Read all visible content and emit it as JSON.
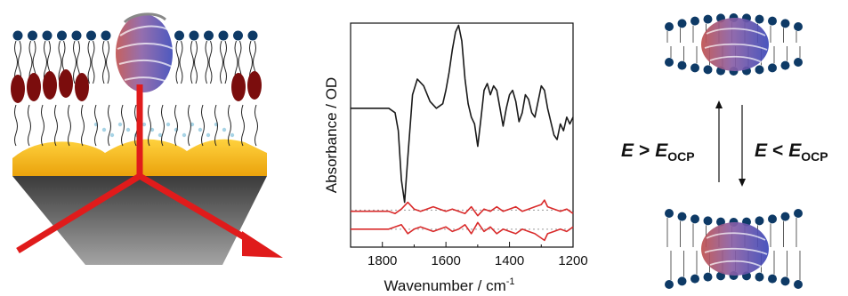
{
  "chart_data": {
    "type": "line",
    "ylabel": "Absorbance / OD",
    "xlabel_main": "Wavenumber / cm",
    "xlabel_sup": "-1",
    "xlim": [
      1900,
      1200
    ],
    "x_ticks": [
      "1800",
      "1600",
      "1400",
      "1200"
    ],
    "x_tick_values": [
      1800,
      1600,
      1400,
      1200
    ],
    "grid": false,
    "series": [
      {
        "color": "#1a1a1a",
        "baseline_y": 0.62,
        "x": [
          1900,
          1780,
          1760,
          1750,
          1740,
          1730,
          1720,
          1705,
          1690,
          1670,
          1650,
          1630,
          1610,
          1600,
          1590,
          1580,
          1570,
          1560,
          1550,
          1540,
          1530,
          1520,
          1510,
          1500,
          1490,
          1480,
          1470,
          1460,
          1450,
          1440,
          1430,
          1420,
          1410,
          1400,
          1390,
          1380,
          1370,
          1360,
          1350,
          1340,
          1330,
          1320,
          1310,
          1300,
          1290,
          1280,
          1270,
          1260,
          1250,
          1240,
          1230,
          1220,
          1210,
          1200
        ],
        "y": [
          0.62,
          0.62,
          0.6,
          0.52,
          0.3,
          0.2,
          0.4,
          0.68,
          0.75,
          0.72,
          0.65,
          0.62,
          0.64,
          0.7,
          0.78,
          0.88,
          0.96,
          0.99,
          0.92,
          0.75,
          0.64,
          0.58,
          0.55,
          0.45,
          0.57,
          0.7,
          0.73,
          0.68,
          0.72,
          0.7,
          0.62,
          0.54,
          0.62,
          0.68,
          0.7,
          0.65,
          0.56,
          0.6,
          0.68,
          0.66,
          0.6,
          0.58,
          0.65,
          0.72,
          0.7,
          0.62,
          0.56,
          0.5,
          0.48,
          0.55,
          0.52,
          0.58,
          0.55,
          0.58
        ]
      },
      {
        "color": "#d92b2b",
        "x": [
          1900,
          1780,
          1760,
          1740,
          1720,
          1700,
          1680,
          1660,
          1640,
          1620,
          1600,
          1580,
          1560,
          1540,
          1520,
          1500,
          1480,
          1460,
          1440,
          1420,
          1400,
          1380,
          1360,
          1340,
          1320,
          1300,
          1290,
          1280,
          1260,
          1240,
          1220,
          1200
        ],
        "y": [
          0.16,
          0.16,
          0.15,
          0.17,
          0.2,
          0.17,
          0.16,
          0.17,
          0.18,
          0.17,
          0.16,
          0.17,
          0.16,
          0.15,
          0.18,
          0.14,
          0.17,
          0.16,
          0.18,
          0.16,
          0.17,
          0.18,
          0.16,
          0.17,
          0.18,
          0.19,
          0.21,
          0.18,
          0.17,
          0.16,
          0.17,
          0.15
        ]
      },
      {
        "color": "#d92b2b",
        "x": [
          1900,
          1780,
          1760,
          1740,
          1720,
          1700,
          1680,
          1660,
          1640,
          1620,
          1600,
          1580,
          1560,
          1540,
          1520,
          1500,
          1480,
          1460,
          1440,
          1420,
          1400,
          1380,
          1360,
          1340,
          1320,
          1300,
          1290,
          1280,
          1260,
          1240,
          1220,
          1200
        ],
        "y": [
          0.08,
          0.08,
          0.09,
          0.1,
          0.06,
          0.08,
          0.09,
          0.08,
          0.07,
          0.08,
          0.09,
          0.07,
          0.08,
          0.1,
          0.06,
          0.11,
          0.07,
          0.09,
          0.06,
          0.08,
          0.07,
          0.06,
          0.08,
          0.07,
          0.06,
          0.04,
          0.03,
          0.06,
          0.07,
          0.08,
          0.07,
          0.09
        ]
      }
    ],
    "reference_lines": [
      0.165,
      0.08
    ],
    "reference_color": "#9a9a9a"
  },
  "equilibrium": {
    "upper_lhs": "E",
    "upper_op": ">",
    "upper_rhs": "E",
    "upper_sub": "OCP",
    "lower_lhs": "E",
    "lower_op": "<",
    "lower_rhs": "E",
    "lower_sub": "OCP"
  },
  "colors": {
    "lipid_head": "#0e3a66",
    "lipid_tail": "#222222",
    "protein_blue": "#3a47b8",
    "protein_red": "#c0504d",
    "gold": "#f4b41a",
    "prism_dark": "#3f3f3f",
    "prism_light": "#9a9a9a",
    "beam": "#e01b1b",
    "anchor_oval": "#7b0d0d",
    "water": "#a8d4e6"
  },
  "icons": {
    "left": "membrane-on-gold-prism-illustration",
    "protein": "beta-barrel-protein-icon",
    "right_top": "membrane-protein-state-icon",
    "right_bottom": "membrane-protein-state-icon"
  }
}
